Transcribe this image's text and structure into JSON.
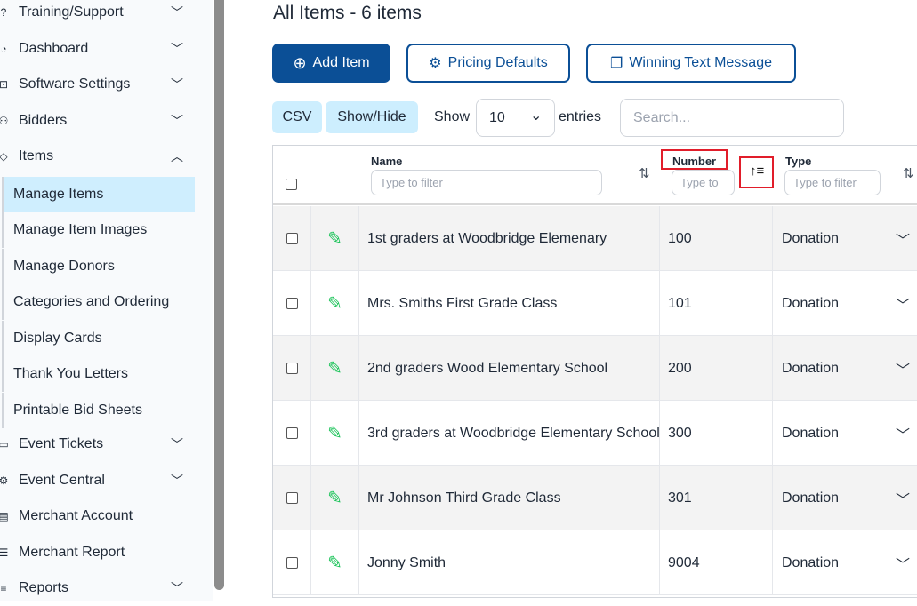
{
  "sidebar": {
    "items": [
      {
        "label": "Training/Support",
        "icon": "question-circle-icon",
        "glyph": "?",
        "chev": "⌄"
      },
      {
        "label": "Dashboard",
        "icon": "gauge-icon",
        "glyph": "◔",
        "chev": "⌄"
      },
      {
        "label": "Software Settings",
        "icon": "settings-box-icon",
        "glyph": "⊡",
        "chev": "⌄"
      },
      {
        "label": "Bidders",
        "icon": "users-icon",
        "glyph": "⚇",
        "chev": "⌄"
      },
      {
        "label": "Items",
        "icon": "gavel-icon",
        "glyph": "◇",
        "chev": "⌃"
      }
    ],
    "subitems": [
      "Manage Items",
      "Manage Item Images",
      "Manage Donors",
      "Categories and Ordering",
      "Display Cards",
      "Thank You Letters",
      "Printable Bid Sheets"
    ],
    "items2": [
      {
        "label": "Event Tickets",
        "icon": "ticket-icon",
        "glyph": "▭",
        "chev": "⌄"
      },
      {
        "label": "Event Central",
        "icon": "gears-icon",
        "glyph": "⚙",
        "chev": "⌄"
      },
      {
        "label": "Merchant Account",
        "icon": "card-icon",
        "glyph": "▤",
        "chev": ""
      },
      {
        "label": "Merchant Report",
        "icon": "report-icon",
        "glyph": "☰",
        "chev": ""
      },
      {
        "label": "Reports",
        "icon": "list-icon",
        "glyph": "≡",
        "chev": "⌄"
      }
    ]
  },
  "main": {
    "title": "All Items - 6 items",
    "add_item": "Add Item",
    "pricing_defaults": "Pricing Defaults",
    "winning_text": "Winning Text Message",
    "csv": "CSV",
    "show_hide": "Show/Hide",
    "show": "Show",
    "entries_value": "10",
    "entries": "entries",
    "search_placeholder": "Search..."
  },
  "table": {
    "headers": {
      "name": "Name",
      "number": "Number",
      "type": "Type"
    },
    "filter_placeholder": "Type to filter",
    "number_filter_placeholder": "Type to",
    "rows": [
      {
        "name": "1st graders at Woodbridge Elemenary",
        "number": "100",
        "type": "Donation"
      },
      {
        "name": "Mrs. Smiths First Grade Class",
        "number": "101",
        "type": "Donation"
      },
      {
        "name": "2nd graders Wood Elementary School",
        "number": "200",
        "type": "Donation"
      },
      {
        "name": "3rd graders at Woodbridge Elementary School",
        "number": "300",
        "type": "Donation"
      },
      {
        "name": "Mr Johnson Third Grade Class",
        "number": "301",
        "type": "Donation"
      },
      {
        "name": "Jonny Smith",
        "number": "9004",
        "type": "Donation"
      }
    ]
  },
  "colors": {
    "primary": "#0b4f96",
    "active": "#cfeefe",
    "highlight": "#e11d2a",
    "edit": "#22c55e"
  }
}
